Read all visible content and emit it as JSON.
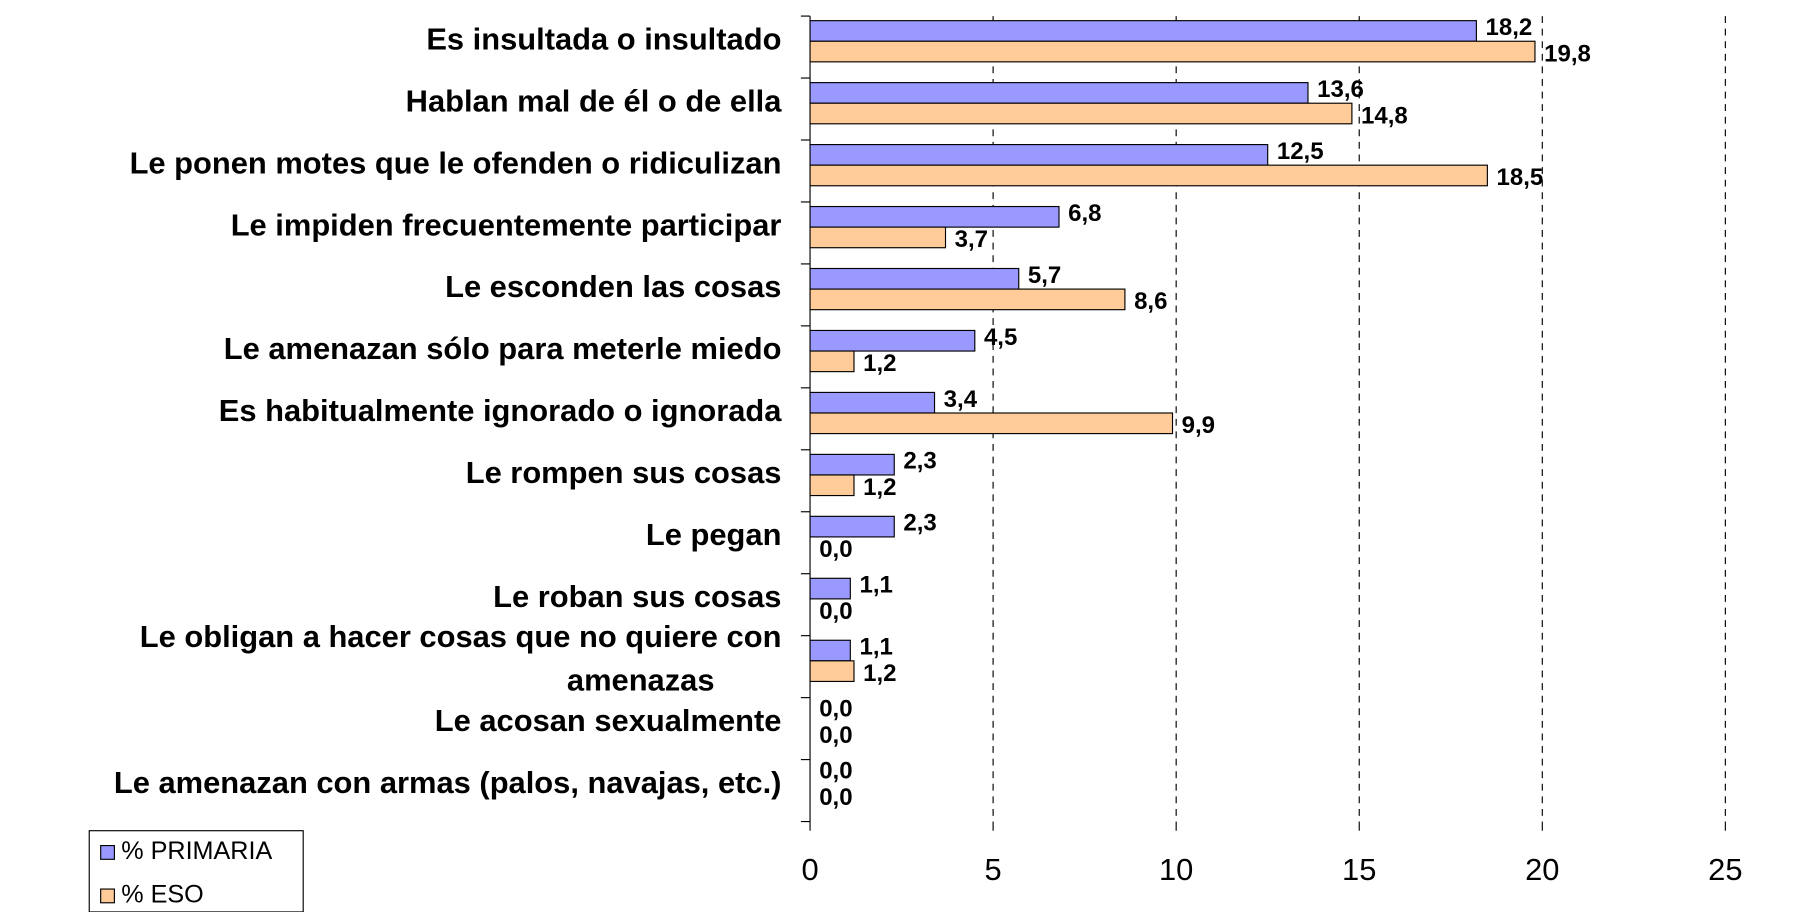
{
  "chart_data": {
    "type": "hbar",
    "categories": [
      "Es insultada o insultado",
      "Hablan mal de él o de ella",
      "Le ponen motes que le ofenden o ridiculizan",
      "Le impiden frecuentemente participar",
      "Le esconden las cosas",
      "Le amenazan sólo para meterle miedo",
      "Es habitualmente ignorado o ignorada",
      "Le rompen sus cosas",
      "Le pegan",
      "Le roban sus cosas",
      "Le obligan a hacer cosas que no quiere con amenazas",
      "Le acosan sexualmente",
      "Le amenazan con armas (palos, navajas, etc.)"
    ],
    "series": [
      {
        "name": "% PRIMARIA",
        "color": "#9999ff",
        "values": [
          18.2,
          13.6,
          12.5,
          6.8,
          5.7,
          4.5,
          3.4,
          2.3,
          2.3,
          1.1,
          1.1,
          0,
          0
        ],
        "value_labels": [
          "18,2",
          "13,6",
          "12,5",
          "6,8",
          "5,7",
          "4,5",
          "3,4",
          "2,3",
          "2,3",
          "1,1",
          "1,1",
          "0,0",
          "0,0"
        ]
      },
      {
        "name": "% ESO",
        "color": "#ffcc99",
        "values": [
          19.8,
          14.8,
          18.5,
          3.7,
          8.6,
          1.2,
          9.9,
          1.2,
          0,
          0,
          1.2,
          0,
          0
        ],
        "value_labels": [
          "19,8",
          "14,8",
          "18,5",
          "3,7",
          "8,6",
          "1,2",
          "9,9",
          "1,2",
          "0,0",
          "0,0",
          "1,2",
          "0,0",
          "0,0"
        ]
      }
    ],
    "xlim": [
      0,
      25
    ],
    "xticks": [
      0,
      5,
      10,
      15,
      20,
      25
    ],
    "grid": true,
    "legend": "lower left"
  }
}
